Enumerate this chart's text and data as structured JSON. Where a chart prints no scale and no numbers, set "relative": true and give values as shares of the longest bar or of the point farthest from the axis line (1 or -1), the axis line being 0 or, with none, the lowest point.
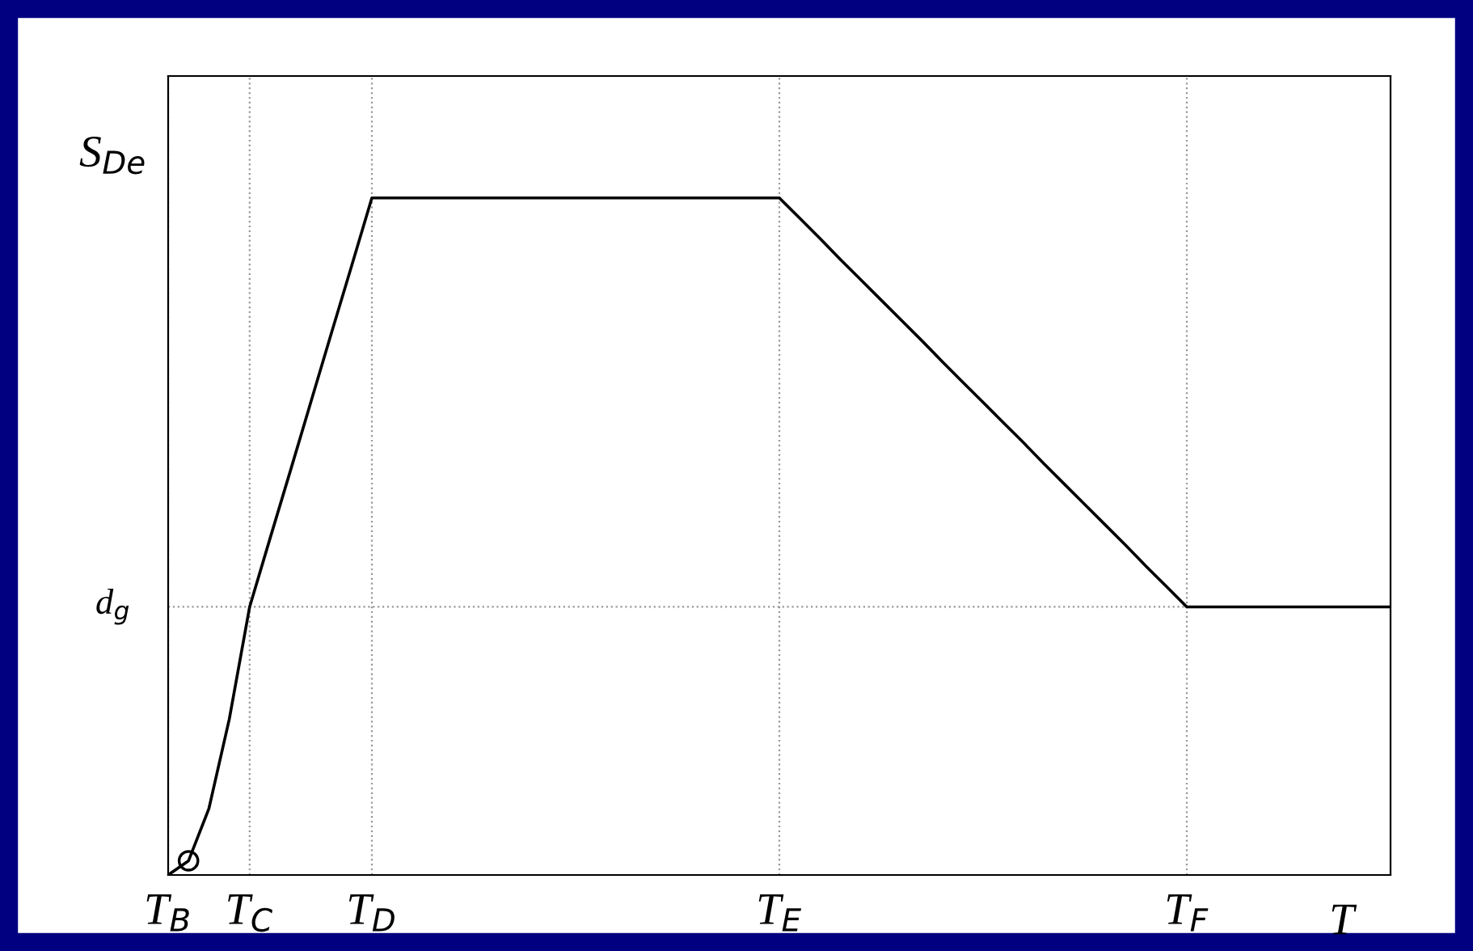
{
  "chart_data": {
    "type": "line",
    "relative": true,
    "ylabel": "S$_{De}$",
    "xlabel": "T",
    "categories": [
      "T$_{B}$",
      null,
      null,
      null,
      "T$_{C}$",
      null,
      null,
      null,
      null,
      null,
      "T$_{D}$",
      null,
      null,
      null,
      null,
      null,
      null,
      null,
      null,
      null,
      null,
      null,
      null,
      null,
      null,
      null,
      null,
      null,
      null,
      null,
      "T$_{E}$",
      null,
      null,
      null,
      null,
      null,
      null,
      null,
      null,
      null,
      null,
      null,
      null,
      null,
      null,
      null,
      null,
      null,
      null,
      null,
      "T$_{F}$",
      null,
      null,
      null,
      null,
      null,
      null,
      null,
      null,
      null,
      null
    ],
    "series": [
      {
        "color": "#000000",
        "values": [
          0,
          0.021,
          0.098,
          0.23,
          0.396,
          0.497,
          0.597,
          0.698,
          0.799,
          0.899,
          1,
          1,
          1,
          1,
          1,
          1,
          1,
          1,
          1,
          1,
          1,
          1,
          1,
          1,
          1,
          1,
          1,
          1,
          1,
          1,
          1,
          0.97,
          0.94,
          0.909,
          0.879,
          0.849,
          0.819,
          0.789,
          0.758,
          0.728,
          0.698,
          0.668,
          0.638,
          0.607,
          0.577,
          0.547,
          0.517,
          0.487,
          0.456,
          0.426,
          0.396,
          0.396,
          0.396,
          0.396,
          0.396,
          0.396,
          0.396,
          0.396,
          0.396,
          0.396,
          0.396
        ]
      },
      {
        "type": "scatter",
        "color": "#000000",
        "marker": "circle",
        "values": [
          null,
          0.021,
          null,
          null,
          null,
          null,
          null,
          null,
          null,
          null,
          null,
          null,
          null,
          null,
          null,
          null,
          null,
          null,
          null,
          null,
          null,
          null,
          null,
          null,
          null,
          null,
          null,
          null,
          null,
          null,
          null,
          null,
          null,
          null,
          null,
          null,
          null,
          null,
          null,
          null,
          null,
          null,
          null,
          null,
          null,
          null,
          null,
          null,
          null,
          null,
          null,
          null,
          null,
          null,
          null,
          null,
          null,
          null,
          null,
          null,
          null
        ]
      }
    ],
    "ref_lines": [
      {
        "axis": "y",
        "value": 0.396,
        "label": "d$_{g}$",
        "color": "#999999",
        "line_style": "dotted"
      }
    ],
    "grid": "x"
  }
}
